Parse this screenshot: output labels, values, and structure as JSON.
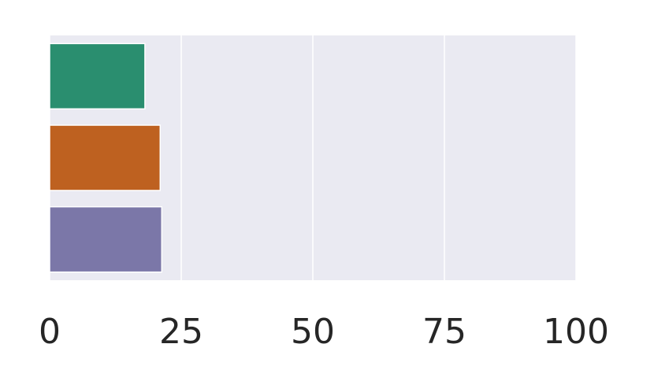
{
  "chart_data": {
    "type": "barh",
    "categories": [
      null,
      null,
      null
    ],
    "values": [
      18.1,
      21.0,
      21.3
    ],
    "colors": [
      "#2a8e6f",
      "#be6120",
      "#7b77a8"
    ],
    "xlim": [
      0,
      100
    ],
    "xticks": [
      0,
      25,
      50,
      75,
      100
    ],
    "grid": true
  }
}
